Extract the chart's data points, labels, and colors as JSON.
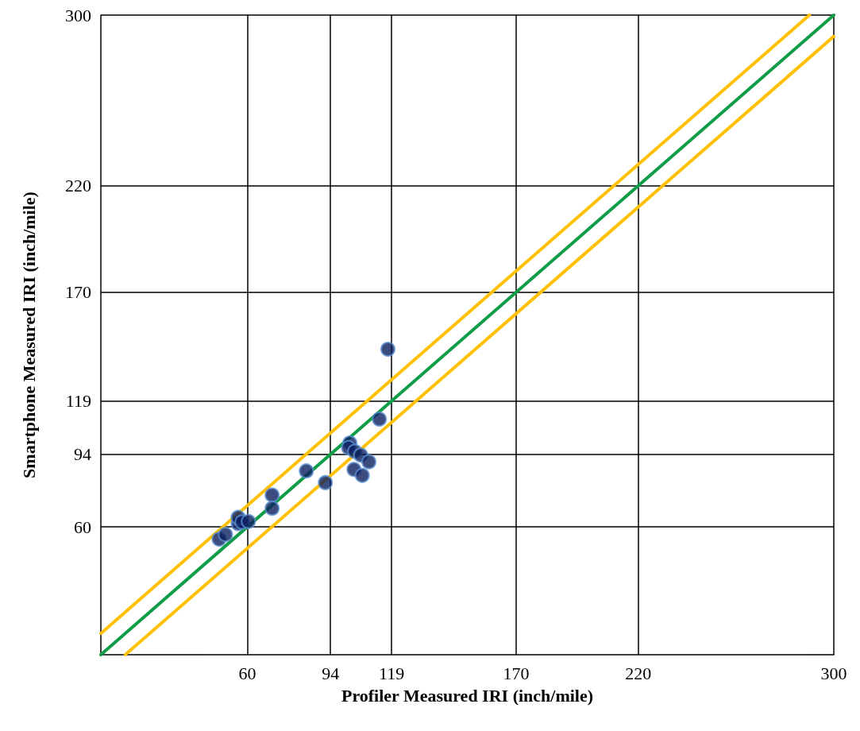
{
  "chart_data": {
    "type": "scatter",
    "xlabel": "Profiler Measured IRI (inch/mile)",
    "ylabel": "Smartphone Measured IRI (inch/mile)",
    "xlim": [
      0,
      300
    ],
    "ylim": [
      0,
      300
    ],
    "xticks": [
      60,
      94,
      119,
      170,
      220,
      300
    ],
    "yticks": [
      60,
      94,
      119,
      170,
      220,
      300
    ],
    "grid": true,
    "legend": false,
    "marker": "circle",
    "series": [
      {
        "type": "line",
        "color": "#ffc000",
        "x": [
          0,
          290
        ],
        "values": [
          10,
          300
        ],
        "marker": "none",
        "line_style": "solid"
      },
      {
        "type": "line",
        "color": "#0f9d48",
        "x": [
          0,
          300
        ],
        "values": [
          0,
          300
        ],
        "marker": "none",
        "line_style": "solid"
      },
      {
        "type": "line",
        "color": "#ffc000",
        "x": [
          10,
          300
        ],
        "values": [
          0,
          290
        ],
        "marker": "none",
        "line_style": "solid"
      },
      {
        "color": "#0b1f5e",
        "x": [
          48.4,
          51,
          56.2,
          56.2,
          57.8,
          60.4,
          70.1,
          70.1,
          84.1,
          91.9,
          101.9,
          101.4,
          103.9,
          106.4,
          109.7,
          103.6,
          107,
          114,
          117.5
        ],
        "values": [
          54.2,
          56.4,
          61.5,
          64.4,
          62.2,
          62.5,
          74.9,
          68.7,
          86.2,
          80.7,
          99.3,
          97.1,
          95.4,
          93.6,
          90.5,
          86.9,
          84.1,
          110.5,
          143.3
        ]
      }
    ]
  }
}
